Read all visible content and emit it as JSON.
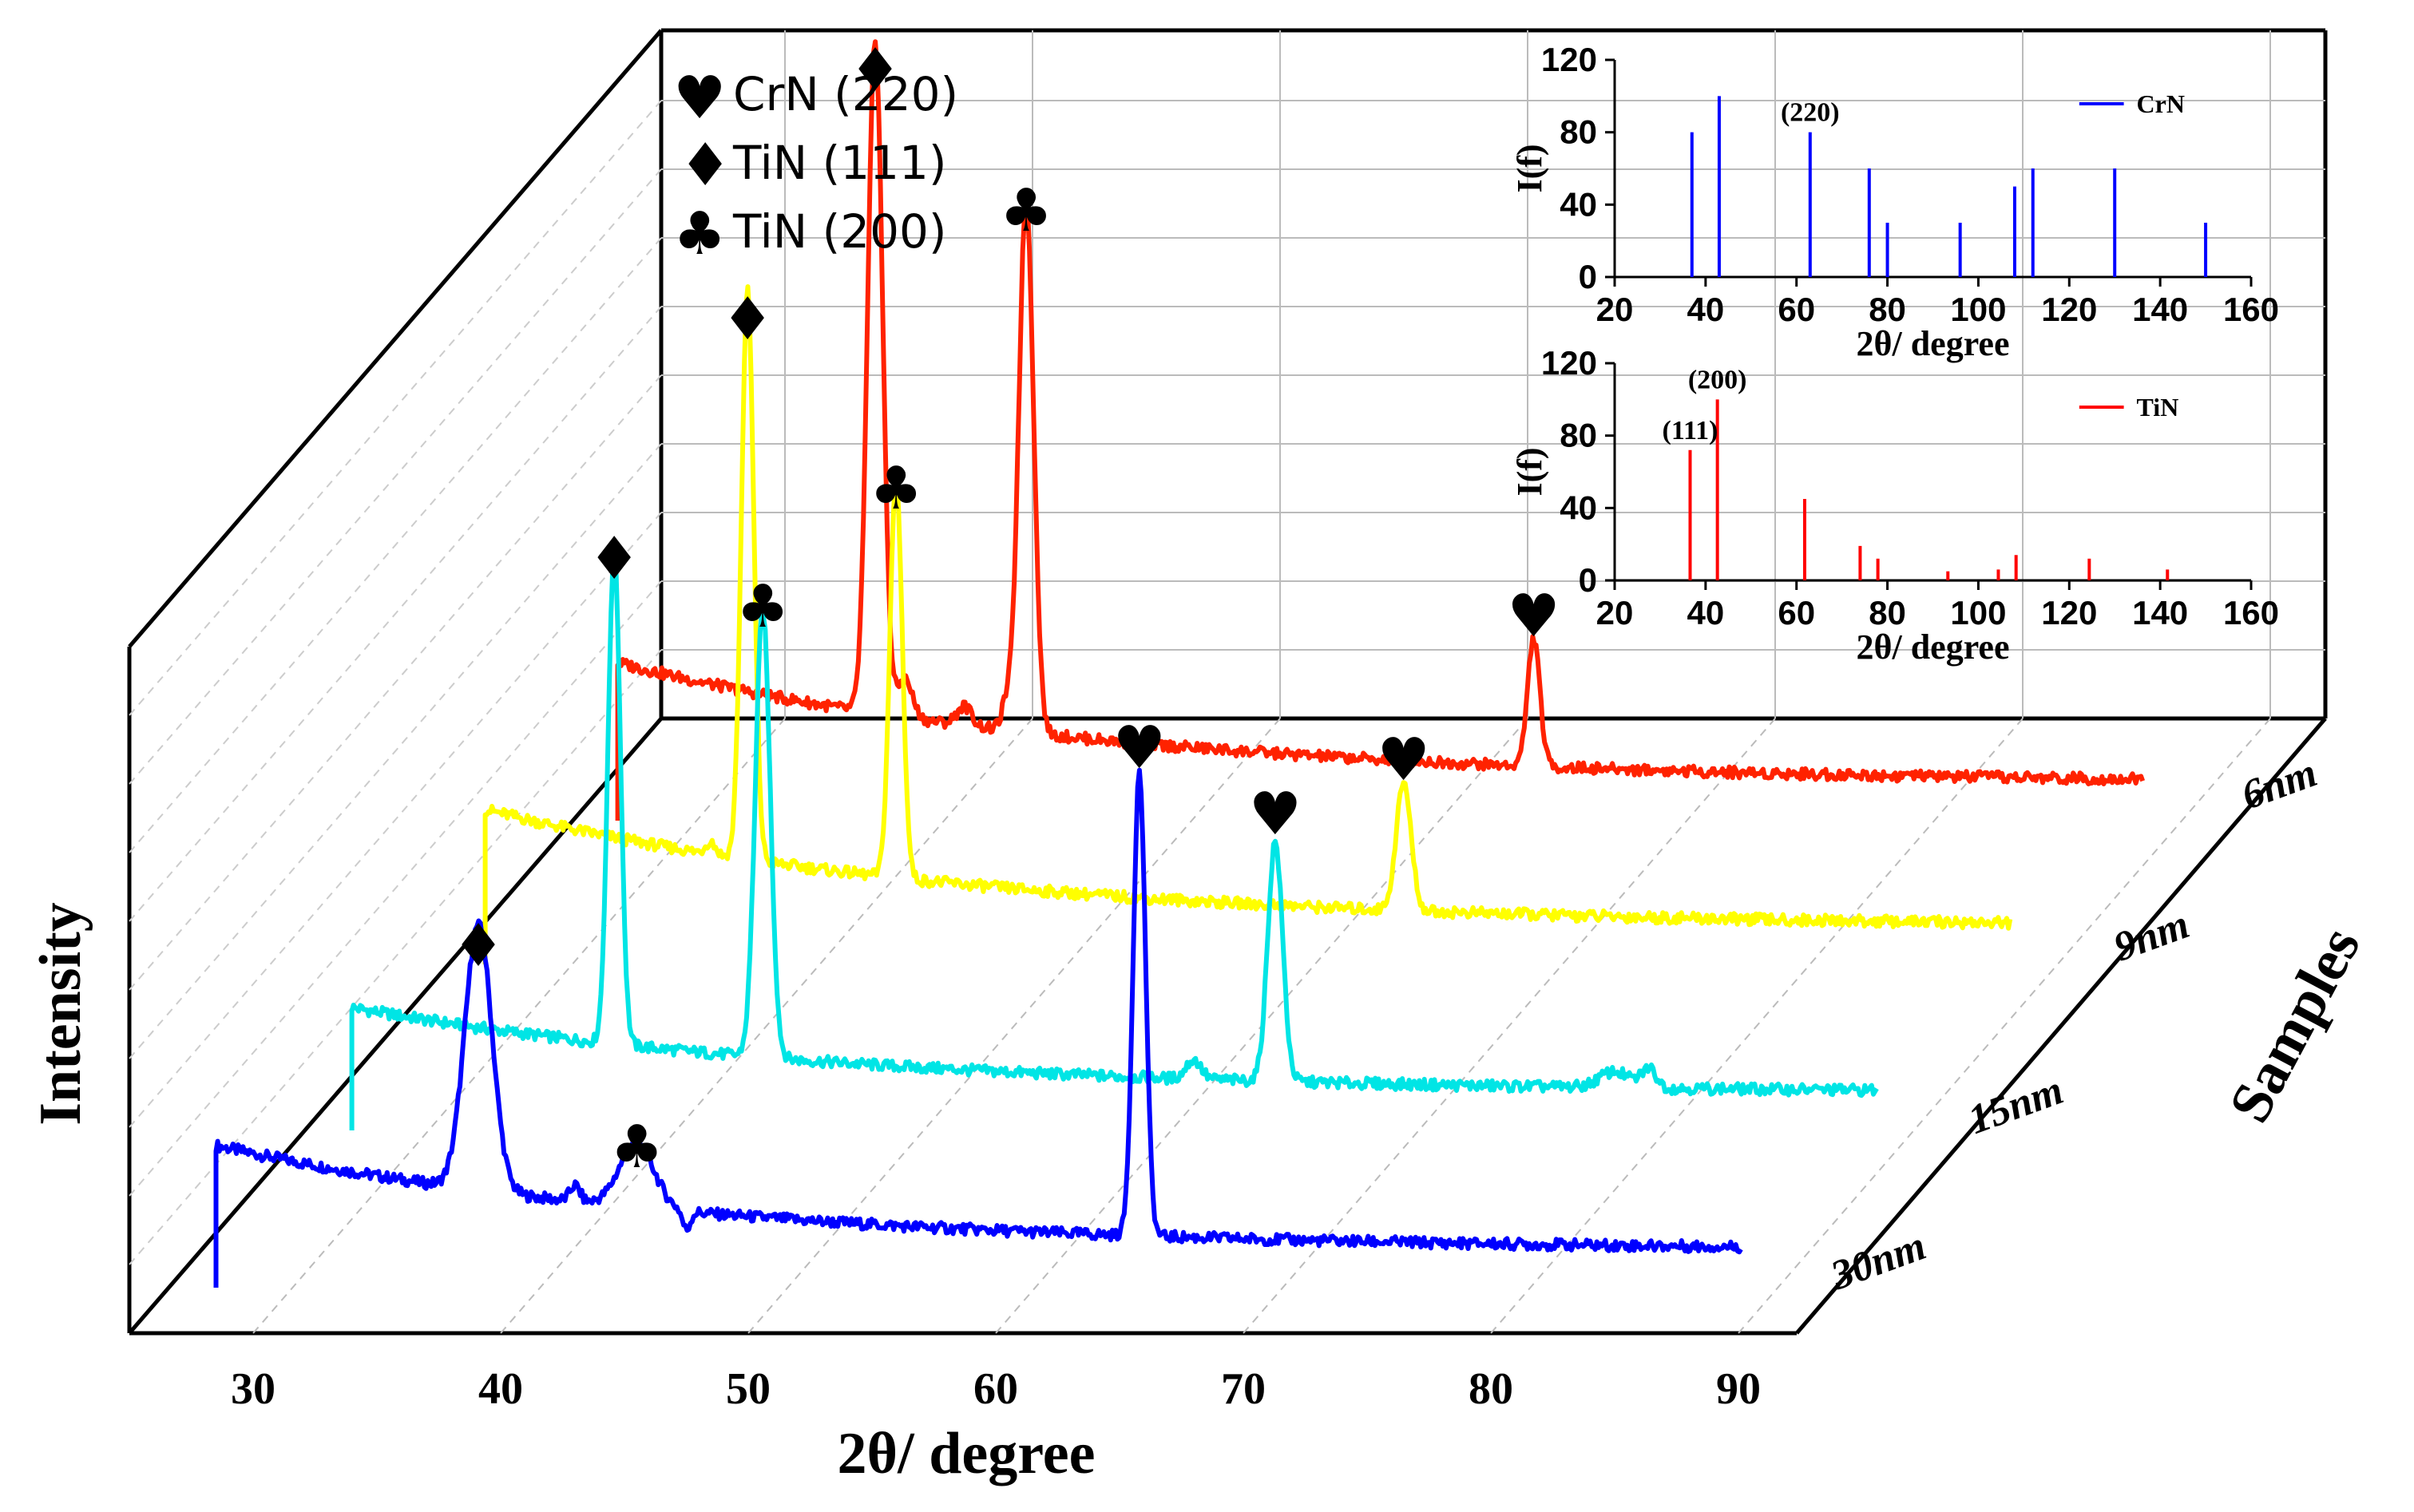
{
  "chart_data": {
    "type": "line",
    "subtype": "3d-waterfall",
    "xlabel": "2θ/ degree",
    "ylabel": "Intensity",
    "zlabel": "Samples",
    "x_ticks": [
      "30",
      "40",
      "50",
      "60",
      "70",
      "80",
      "90"
    ],
    "xlim": [
      25,
      90
    ],
    "series": [
      {
        "name": "30nm",
        "color": "#0000ff",
        "x_start": 28.5,
        "x_end": 90.1,
        "baseline_start": 0.33,
        "baseline_end": 0.02,
        "peaks": [
          {
            "x": 39.1,
            "h": 0.83,
            "w": 0.55
          },
          {
            "x": 45.5,
            "h": 0.2,
            "w": 0.7
          },
          {
            "x": 65.8,
            "h": 1.45,
            "w": 0.25
          },
          {
            "x": 43.0,
            "h": 0.05,
            "w": 0.2
          },
          {
            "x": 47.5,
            "h": -0.06,
            "w": 0.15
          }
        ]
      },
      {
        "name": "15nm",
        "color": "#00e5e5",
        "x_start": 34.0,
        "x_end": 95.6,
        "baseline_start": 0.27,
        "baseline_end": 0.02,
        "peaks": [
          {
            "x": 44.6,
            "h": 1.55,
            "w": 0.25
          },
          {
            "x": 50.6,
            "h": 1.4,
            "w": 0.3
          },
          {
            "x": 71.3,
            "h": 0.75,
            "w": 0.3
          },
          {
            "x": 68.0,
            "h": 0.06,
            "w": 0.3
          },
          {
            "x": 85.0,
            "h": 0.05,
            "w": 0.6
          },
          {
            "x": 86.4,
            "h": 0.06,
            "w": 0.3
          }
        ]
      },
      {
        "name": "9nm",
        "color": "#ffff00",
        "x_start": 39.4,
        "x_end": 101.0,
        "baseline_start": 0.37,
        "baseline_end": 0.02,
        "peaks": [
          {
            "x": 50.0,
            "h": 1.78,
            "w": 0.25
          },
          {
            "x": 56.0,
            "h": 1.25,
            "w": 0.25
          },
          {
            "x": 76.5,
            "h": 0.4,
            "w": 0.3
          },
          {
            "x": 48.5,
            "h": 0.04,
            "w": 0.2
          }
        ]
      },
      {
        "name": "6nm",
        "color": "#ff2200",
        "x_start": 44.8,
        "x_end": 106.4,
        "baseline_start": 0.38,
        "baseline_end": 0.02,
        "peaks": [
          {
            "x": 55.2,
            "h": 2.11,
            "w": 0.3
          },
          {
            "x": 61.3,
            "h": 1.67,
            "w": 0.3
          },
          {
            "x": 81.8,
            "h": 0.4,
            "w": 0.25
          },
          {
            "x": 56.4,
            "h": 0.12,
            "w": 0.3
          },
          {
            "x": 58.8,
            "h": 0.06,
            "w": 0.3
          },
          {
            "x": 60.5,
            "h": 0.08,
            "w": 0.2
          }
        ]
      }
    ],
    "peak_markers": [
      {
        "series": 0,
        "x": 39.1,
        "symbol": "♦"
      },
      {
        "series": 0,
        "x": 45.5,
        "symbol": "♣"
      },
      {
        "series": 0,
        "x": 65.8,
        "symbol": "♥"
      },
      {
        "series": 1,
        "x": 44.6,
        "symbol": "♦"
      },
      {
        "series": 1,
        "x": 50.6,
        "symbol": "♣"
      },
      {
        "series": 1,
        "x": 71.3,
        "symbol": "♥"
      },
      {
        "series": 2,
        "x": 50.0,
        "symbol": "♦"
      },
      {
        "series": 2,
        "x": 56.0,
        "symbol": "♣"
      },
      {
        "series": 2,
        "x": 76.5,
        "symbol": "♥"
      },
      {
        "series": 3,
        "x": 55.2,
        "symbol": "♦"
      },
      {
        "series": 3,
        "x": 61.3,
        "symbol": "♣"
      },
      {
        "series": 3,
        "x": 81.8,
        "symbol": "♥"
      }
    ],
    "legend": [
      {
        "symbol": "♥",
        "label": "CrN (220)"
      },
      {
        "symbol": "♦",
        "label": "TiN (111)"
      },
      {
        "symbol": "♣",
        "label": "TiN (200)"
      }
    ],
    "insets": [
      {
        "name": "CrN",
        "color": "#0000ff",
        "xlabel": "2θ/ degree",
        "ylabel": "I(f)",
        "xlim": [
          20,
          160
        ],
        "ylim": [
          0,
          120
        ],
        "x_ticks": [
          "20",
          "40",
          "60",
          "80",
          "100",
          "120",
          "140",
          "160"
        ],
        "y_ticks": [
          "0",
          "40",
          "80",
          "120"
        ],
        "legend": "CrN",
        "annotations": [
          {
            "x": 63,
            "y": 80,
            "text": "(220)"
          }
        ],
        "bars": [
          {
            "x": 37,
            "y": 80
          },
          {
            "x": 43,
            "y": 100
          },
          {
            "x": 63,
            "y": 80
          },
          {
            "x": 76,
            "y": 60
          },
          {
            "x": 80,
            "y": 30
          },
          {
            "x": 96,
            "y": 30
          },
          {
            "x": 108,
            "y": 50
          },
          {
            "x": 112,
            "y": 60
          },
          {
            "x": 130,
            "y": 60
          },
          {
            "x": 150,
            "y": 30
          }
        ]
      },
      {
        "name": "TiN",
        "color": "#ff0000",
        "xlabel": "2θ/ degree",
        "ylabel": "I(f)",
        "xlim": [
          20,
          160
        ],
        "ylim": [
          0,
          120
        ],
        "x_ticks": [
          "20",
          "40",
          "60",
          "80",
          "100",
          "120",
          "140",
          "160"
        ],
        "y_ticks": [
          "0",
          "40",
          "80",
          "120"
        ],
        "legend": "TiN",
        "annotations": [
          {
            "x": 36.6,
            "y": 72,
            "text": "(111)"
          },
          {
            "x": 42.6,
            "y": 100,
            "text": "(200)"
          }
        ],
        "bars": [
          {
            "x": 36.6,
            "y": 72
          },
          {
            "x": 42.6,
            "y": 100
          },
          {
            "x": 61.8,
            "y": 45
          },
          {
            "x": 74,
            "y": 19
          },
          {
            "x": 77.9,
            "y": 12
          },
          {
            "x": 93.3,
            "y": 5
          },
          {
            "x": 104.4,
            "y": 6
          },
          {
            "x": 108.3,
            "y": 14
          },
          {
            "x": 124.4,
            "y": 12
          },
          {
            "x": 141.6,
            "y": 6
          }
        ]
      }
    ]
  }
}
